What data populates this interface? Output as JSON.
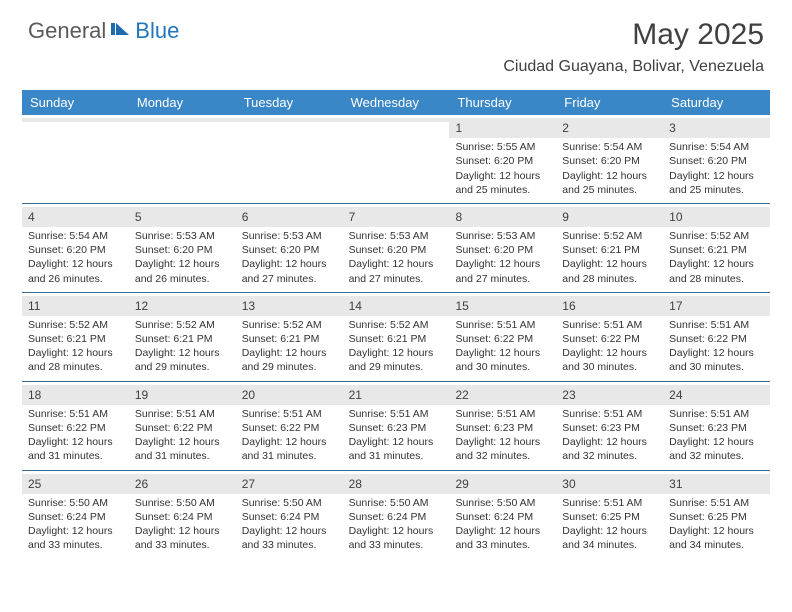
{
  "brand": {
    "part1": "General",
    "part2": "Blue"
  },
  "title": "May 2025",
  "location": "Ciudad Guayana, Bolivar, Venezuela",
  "colors": {
    "header_bg": "#3a87c8",
    "header_text": "#ffffff",
    "daynum_bg": "#e8e8e8",
    "border": "#3a6a95",
    "brand_gray": "#5a5a5a",
    "brand_blue": "#2176bd",
    "text": "#333333"
  },
  "day_headers": [
    "Sunday",
    "Monday",
    "Tuesday",
    "Wednesday",
    "Thursday",
    "Friday",
    "Saturday"
  ],
  "weeks": [
    [
      {
        "n": "",
        "sr": "",
        "ss": "",
        "dl": ""
      },
      {
        "n": "",
        "sr": "",
        "ss": "",
        "dl": ""
      },
      {
        "n": "",
        "sr": "",
        "ss": "",
        "dl": ""
      },
      {
        "n": "",
        "sr": "",
        "ss": "",
        "dl": ""
      },
      {
        "n": "1",
        "sr": "Sunrise: 5:55 AM",
        "ss": "Sunset: 6:20 PM",
        "dl": "Daylight: 12 hours and 25 minutes."
      },
      {
        "n": "2",
        "sr": "Sunrise: 5:54 AM",
        "ss": "Sunset: 6:20 PM",
        "dl": "Daylight: 12 hours and 25 minutes."
      },
      {
        "n": "3",
        "sr": "Sunrise: 5:54 AM",
        "ss": "Sunset: 6:20 PM",
        "dl": "Daylight: 12 hours and 25 minutes."
      }
    ],
    [
      {
        "n": "4",
        "sr": "Sunrise: 5:54 AM",
        "ss": "Sunset: 6:20 PM",
        "dl": "Daylight: 12 hours and 26 minutes."
      },
      {
        "n": "5",
        "sr": "Sunrise: 5:53 AM",
        "ss": "Sunset: 6:20 PM",
        "dl": "Daylight: 12 hours and 26 minutes."
      },
      {
        "n": "6",
        "sr": "Sunrise: 5:53 AM",
        "ss": "Sunset: 6:20 PM",
        "dl": "Daylight: 12 hours and 27 minutes."
      },
      {
        "n": "7",
        "sr": "Sunrise: 5:53 AM",
        "ss": "Sunset: 6:20 PM",
        "dl": "Daylight: 12 hours and 27 minutes."
      },
      {
        "n": "8",
        "sr": "Sunrise: 5:53 AM",
        "ss": "Sunset: 6:20 PM",
        "dl": "Daylight: 12 hours and 27 minutes."
      },
      {
        "n": "9",
        "sr": "Sunrise: 5:52 AM",
        "ss": "Sunset: 6:21 PM",
        "dl": "Daylight: 12 hours and 28 minutes."
      },
      {
        "n": "10",
        "sr": "Sunrise: 5:52 AM",
        "ss": "Sunset: 6:21 PM",
        "dl": "Daylight: 12 hours and 28 minutes."
      }
    ],
    [
      {
        "n": "11",
        "sr": "Sunrise: 5:52 AM",
        "ss": "Sunset: 6:21 PM",
        "dl": "Daylight: 12 hours and 28 minutes."
      },
      {
        "n": "12",
        "sr": "Sunrise: 5:52 AM",
        "ss": "Sunset: 6:21 PM",
        "dl": "Daylight: 12 hours and 29 minutes."
      },
      {
        "n": "13",
        "sr": "Sunrise: 5:52 AM",
        "ss": "Sunset: 6:21 PM",
        "dl": "Daylight: 12 hours and 29 minutes."
      },
      {
        "n": "14",
        "sr": "Sunrise: 5:52 AM",
        "ss": "Sunset: 6:21 PM",
        "dl": "Daylight: 12 hours and 29 minutes."
      },
      {
        "n": "15",
        "sr": "Sunrise: 5:51 AM",
        "ss": "Sunset: 6:22 PM",
        "dl": "Daylight: 12 hours and 30 minutes."
      },
      {
        "n": "16",
        "sr": "Sunrise: 5:51 AM",
        "ss": "Sunset: 6:22 PM",
        "dl": "Daylight: 12 hours and 30 minutes."
      },
      {
        "n": "17",
        "sr": "Sunrise: 5:51 AM",
        "ss": "Sunset: 6:22 PM",
        "dl": "Daylight: 12 hours and 30 minutes."
      }
    ],
    [
      {
        "n": "18",
        "sr": "Sunrise: 5:51 AM",
        "ss": "Sunset: 6:22 PM",
        "dl": "Daylight: 12 hours and 31 minutes."
      },
      {
        "n": "19",
        "sr": "Sunrise: 5:51 AM",
        "ss": "Sunset: 6:22 PM",
        "dl": "Daylight: 12 hours and 31 minutes."
      },
      {
        "n": "20",
        "sr": "Sunrise: 5:51 AM",
        "ss": "Sunset: 6:22 PM",
        "dl": "Daylight: 12 hours and 31 minutes."
      },
      {
        "n": "21",
        "sr": "Sunrise: 5:51 AM",
        "ss": "Sunset: 6:23 PM",
        "dl": "Daylight: 12 hours and 31 minutes."
      },
      {
        "n": "22",
        "sr": "Sunrise: 5:51 AM",
        "ss": "Sunset: 6:23 PM",
        "dl": "Daylight: 12 hours and 32 minutes."
      },
      {
        "n": "23",
        "sr": "Sunrise: 5:51 AM",
        "ss": "Sunset: 6:23 PM",
        "dl": "Daylight: 12 hours and 32 minutes."
      },
      {
        "n": "24",
        "sr": "Sunrise: 5:51 AM",
        "ss": "Sunset: 6:23 PM",
        "dl": "Daylight: 12 hours and 32 minutes."
      }
    ],
    [
      {
        "n": "25",
        "sr": "Sunrise: 5:50 AM",
        "ss": "Sunset: 6:24 PM",
        "dl": "Daylight: 12 hours and 33 minutes."
      },
      {
        "n": "26",
        "sr": "Sunrise: 5:50 AM",
        "ss": "Sunset: 6:24 PM",
        "dl": "Daylight: 12 hours and 33 minutes."
      },
      {
        "n": "27",
        "sr": "Sunrise: 5:50 AM",
        "ss": "Sunset: 6:24 PM",
        "dl": "Daylight: 12 hours and 33 minutes."
      },
      {
        "n": "28",
        "sr": "Sunrise: 5:50 AM",
        "ss": "Sunset: 6:24 PM",
        "dl": "Daylight: 12 hours and 33 minutes."
      },
      {
        "n": "29",
        "sr": "Sunrise: 5:50 AM",
        "ss": "Sunset: 6:24 PM",
        "dl": "Daylight: 12 hours and 33 minutes."
      },
      {
        "n": "30",
        "sr": "Sunrise: 5:51 AM",
        "ss": "Sunset: 6:25 PM",
        "dl": "Daylight: 12 hours and 34 minutes."
      },
      {
        "n": "31",
        "sr": "Sunrise: 5:51 AM",
        "ss": "Sunset: 6:25 PM",
        "dl": "Daylight: 12 hours and 34 minutes."
      }
    ]
  ]
}
